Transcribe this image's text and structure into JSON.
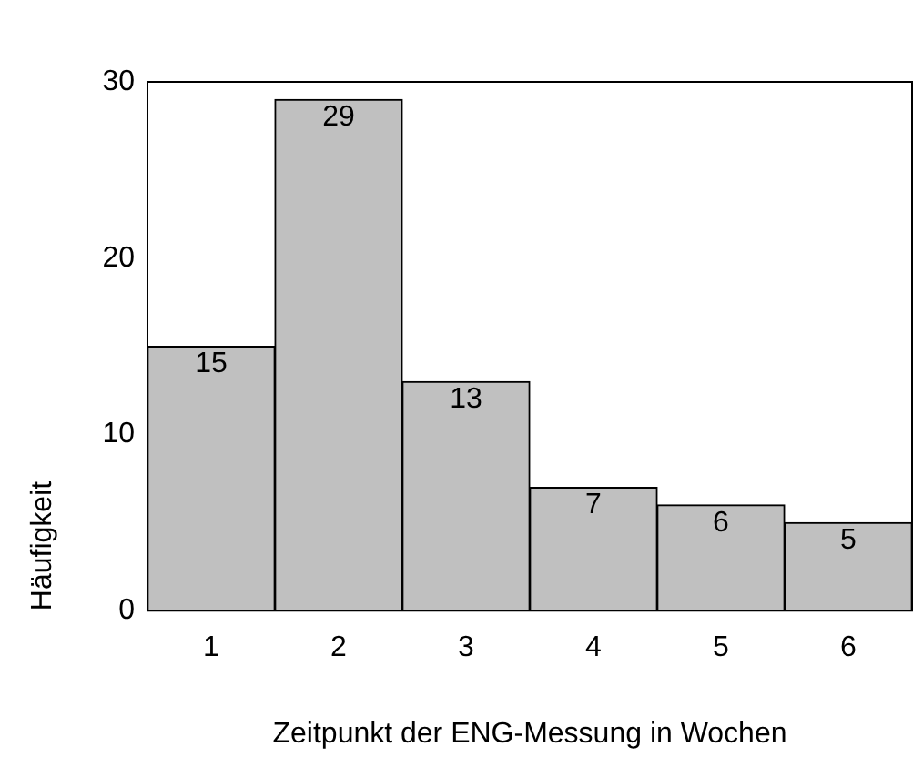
{
  "chart_data": {
    "type": "bar",
    "xlabel": "Zeitpunkt der ENG-Messung in Wochen",
    "ylabel": "Häufigkeit",
    "categories": [
      "1",
      "2",
      "3",
      "4",
      "5",
      "6"
    ],
    "values": [
      15,
      29,
      13,
      7,
      6,
      5
    ],
    "color": "#c0c0c0",
    "ylim": [
      0,
      30
    ],
    "yticks": [
      0,
      10,
      20,
      30
    ],
    "grid": false,
    "data_labels": true
  }
}
